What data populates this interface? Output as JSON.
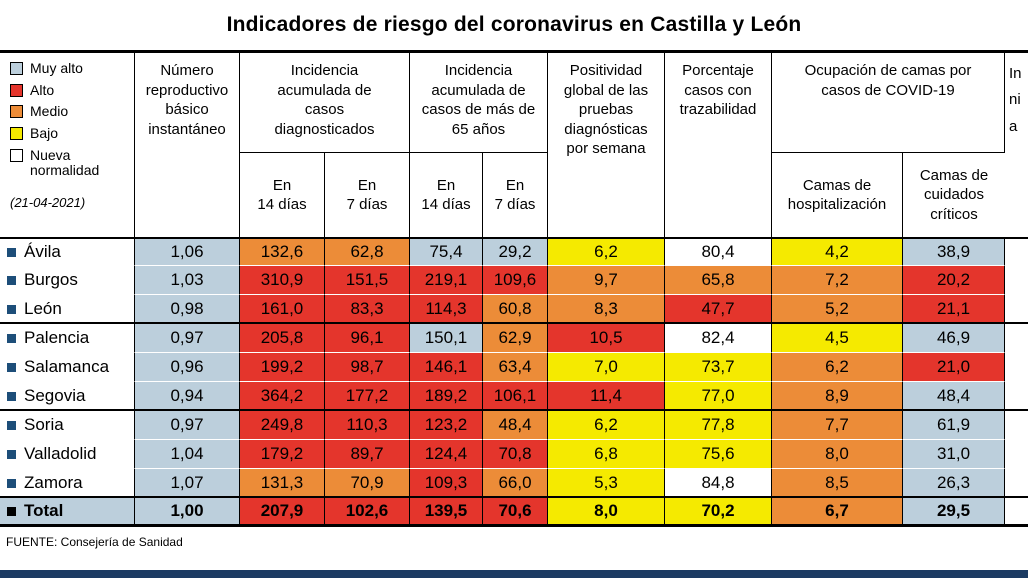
{
  "title": "Indicadores de riesgo del coronavirus en Castilla y León",
  "legend": {
    "date": "(21-04-2021)",
    "items": [
      {
        "label": "Muy alto",
        "key": "muy_alto",
        "color": "#bccfdc"
      },
      {
        "label": "Alto",
        "key": "alto",
        "color": "#e4352c"
      },
      {
        "label": "Medio",
        "key": "medio",
        "color": "#ec8c38"
      },
      {
        "label": "Bajo",
        "key": "bajo",
        "color": "#f5ea00"
      },
      {
        "label": "Nueva normalidad",
        "key": "nueva_normalidad",
        "color": "#ffffff"
      }
    ]
  },
  "risk_colors": {
    "muy_alto": "#bccfdc",
    "alto": "#e4352c",
    "medio": "#ec8c38",
    "bajo": "#f5ea00",
    "nueva_normalidad": "#ffffff"
  },
  "header": {
    "reproductivo": "Número reproductivo básico instantáneo",
    "incidencia_diag": "Incidencia acumulada de casos diagnosticados",
    "incidencia_65": "Incidencia acumulada de casos de más de 65 años",
    "en14": "En\n14 días",
    "en7": "En\n7 días",
    "positividad": "Positividad global de las pruebas diagnósticas por semana",
    "trazabilidad": "Porcentaje casos con trazabilidad",
    "ocupacion": "Ocupación de camas por casos de COVID-19",
    "camas_hosp": "Camas de hospitalización",
    "camas_crit": "Camas de cuidados críticos",
    "clipped": "In\nni\na"
  },
  "rows": [
    {
      "name": "Ávila",
      "bullet": "#1d4e79",
      "total": false,
      "group_end": false,
      "values": [
        "1,06",
        "132,6",
        "62,8",
        "75,4",
        "29,2",
        "6,2",
        "80,4",
        "4,2",
        "38,9"
      ],
      "levels": [
        "muy_alto",
        "medio",
        "medio",
        "muy_alto",
        "muy_alto",
        "bajo",
        "nueva_normalidad",
        "bajo",
        "muy_alto"
      ]
    },
    {
      "name": "Burgos",
      "bullet": "#1d4e79",
      "total": false,
      "group_end": false,
      "values": [
        "1,03",
        "310,9",
        "151,5",
        "219,1",
        "109,6",
        "9,7",
        "65,8",
        "7,2",
        "20,2"
      ],
      "levels": [
        "muy_alto",
        "alto",
        "alto",
        "alto",
        "alto",
        "medio",
        "medio",
        "medio",
        "alto"
      ]
    },
    {
      "name": "León",
      "bullet": "#1d4e79",
      "total": false,
      "group_end": true,
      "values": [
        "0,98",
        "161,0",
        "83,3",
        "114,3",
        "60,8",
        "8,3",
        "47,7",
        "5,2",
        "21,1"
      ],
      "levels": [
        "muy_alto",
        "alto",
        "alto",
        "alto",
        "medio",
        "medio",
        "alto",
        "medio",
        "alto"
      ]
    },
    {
      "name": "Palencia",
      "bullet": "#1d4e79",
      "total": false,
      "group_end": false,
      "values": [
        "0,97",
        "205,8",
        "96,1",
        "150,1",
        "62,9",
        "10,5",
        "82,4",
        "4,5",
        "46,9"
      ],
      "levels": [
        "muy_alto",
        "alto",
        "alto",
        "muy_alto",
        "medio",
        "alto",
        "nueva_normalidad",
        "bajo",
        "muy_alto"
      ]
    },
    {
      "name": "Salamanca",
      "bullet": "#1d4e79",
      "total": false,
      "group_end": false,
      "values": [
        "0,96",
        "199,2",
        "98,7",
        "146,1",
        "63,4",
        "7,0",
        "73,7",
        "6,2",
        "21,0"
      ],
      "levels": [
        "muy_alto",
        "alto",
        "alto",
        "alto",
        "medio",
        "bajo",
        "bajo",
        "medio",
        "alto"
      ]
    },
    {
      "name": "Segovia",
      "bullet": "#1d4e79",
      "total": false,
      "group_end": true,
      "values": [
        "0,94",
        "364,2",
        "177,2",
        "189,2",
        "106,1",
        "11,4",
        "77,0",
        "8,9",
        "48,4"
      ],
      "levels": [
        "muy_alto",
        "alto",
        "alto",
        "alto",
        "alto",
        "alto",
        "bajo",
        "medio",
        "muy_alto"
      ]
    },
    {
      "name": "Soria",
      "bullet": "#1d4e79",
      "total": false,
      "group_end": false,
      "values": [
        "0,97",
        "249,8",
        "110,3",
        "123,2",
        "48,4",
        "6,2",
        "77,8",
        "7,7",
        "61,9"
      ],
      "levels": [
        "muy_alto",
        "alto",
        "alto",
        "alto",
        "medio",
        "bajo",
        "bajo",
        "medio",
        "muy_alto"
      ]
    },
    {
      "name": "Valladolid",
      "bullet": "#1d4e79",
      "total": false,
      "group_end": false,
      "values": [
        "1,04",
        "179,2",
        "89,7",
        "124,4",
        "70,8",
        "6,8",
        "75,6",
        "8,0",
        "31,0"
      ],
      "levels": [
        "muy_alto",
        "alto",
        "alto",
        "alto",
        "alto",
        "bajo",
        "bajo",
        "medio",
        "muy_alto"
      ]
    },
    {
      "name": "Zamora",
      "bullet": "#1d4e79",
      "total": false,
      "group_end": true,
      "values": [
        "1,07",
        "131,3",
        "70,9",
        "109,3",
        "66,0",
        "5,3",
        "84,8",
        "8,5",
        "26,3"
      ],
      "levels": [
        "muy_alto",
        "medio",
        "medio",
        "alto",
        "medio",
        "bajo",
        "nueva_normalidad",
        "medio",
        "muy_alto"
      ]
    },
    {
      "name": "Total",
      "bullet": "#000000",
      "total": true,
      "group_end": false,
      "values": [
        "1,00",
        "207,9",
        "102,6",
        "139,5",
        "70,6",
        "8,0",
        "70,2",
        "6,7",
        "29,5"
      ],
      "levels": [
        "muy_alto",
        "alto",
        "alto",
        "alto",
        "alto",
        "bajo",
        "bajo",
        "medio",
        "muy_alto"
      ]
    }
  ],
  "footer": {
    "source": "FUENTE: Consejería de Sanidad",
    "bar_color": "#1c3b63"
  },
  "chart_data": {
    "type": "table",
    "title": "Indicadores de riesgo del coronavirus en Castilla y León",
    "date": "21-04-2021",
    "legend_levels": [
      "Muy alto",
      "Alto",
      "Medio",
      "Bajo",
      "Nueva normalidad"
    ],
    "columns": [
      "Número reproductivo básico instantáneo",
      "Incidencia acumulada de casos diagnosticados - En 14 días",
      "Incidencia acumulada de casos diagnosticados - En 7 días",
      "Incidencia acumulada de casos de más de 65 años - En 14 días",
      "Incidencia acumulada de casos de más de 65 años - En 7 días",
      "Positividad global de las pruebas diagnósticas por semana",
      "Porcentaje casos con trazabilidad",
      "Ocupación de camas por casos de COVID-19 - Camas de hospitalización",
      "Ocupación de camas por casos de COVID-19 - Camas de cuidados críticos"
    ],
    "rows": [
      {
        "name": "Ávila",
        "values": [
          1.06,
          132.6,
          62.8,
          75.4,
          29.2,
          6.2,
          80.4,
          4.2,
          38.9
        ]
      },
      {
        "name": "Burgos",
        "values": [
          1.03,
          310.9,
          151.5,
          219.1,
          109.6,
          9.7,
          65.8,
          7.2,
          20.2
        ]
      },
      {
        "name": "León",
        "values": [
          0.98,
          161.0,
          83.3,
          114.3,
          60.8,
          8.3,
          47.7,
          5.2,
          21.1
        ]
      },
      {
        "name": "Palencia",
        "values": [
          0.97,
          205.8,
          96.1,
          150.1,
          62.9,
          10.5,
          82.4,
          4.5,
          46.9
        ]
      },
      {
        "name": "Salamanca",
        "values": [
          0.96,
          199.2,
          98.7,
          146.1,
          63.4,
          7.0,
          73.7,
          6.2,
          21.0
        ]
      },
      {
        "name": "Segovia",
        "values": [
          0.94,
          364.2,
          177.2,
          189.2,
          106.1,
          11.4,
          77.0,
          8.9,
          48.4
        ]
      },
      {
        "name": "Soria",
        "values": [
          0.97,
          249.8,
          110.3,
          123.2,
          48.4,
          6.2,
          77.8,
          7.7,
          61.9
        ]
      },
      {
        "name": "Valladolid",
        "values": [
          1.04,
          179.2,
          89.7,
          124.4,
          70.8,
          6.8,
          75.6,
          8.0,
          31.0
        ]
      },
      {
        "name": "Zamora",
        "values": [
          1.07,
          131.3,
          70.9,
          109.3,
          66.0,
          5.3,
          84.8,
          8.5,
          26.3
        ]
      },
      {
        "name": "Total",
        "values": [
          1.0,
          207.9,
          102.6,
          139.5,
          70.6,
          8.0,
          70.2,
          6.7,
          29.5
        ]
      }
    ],
    "source": "FUENTE: Consejería de Sanidad"
  }
}
